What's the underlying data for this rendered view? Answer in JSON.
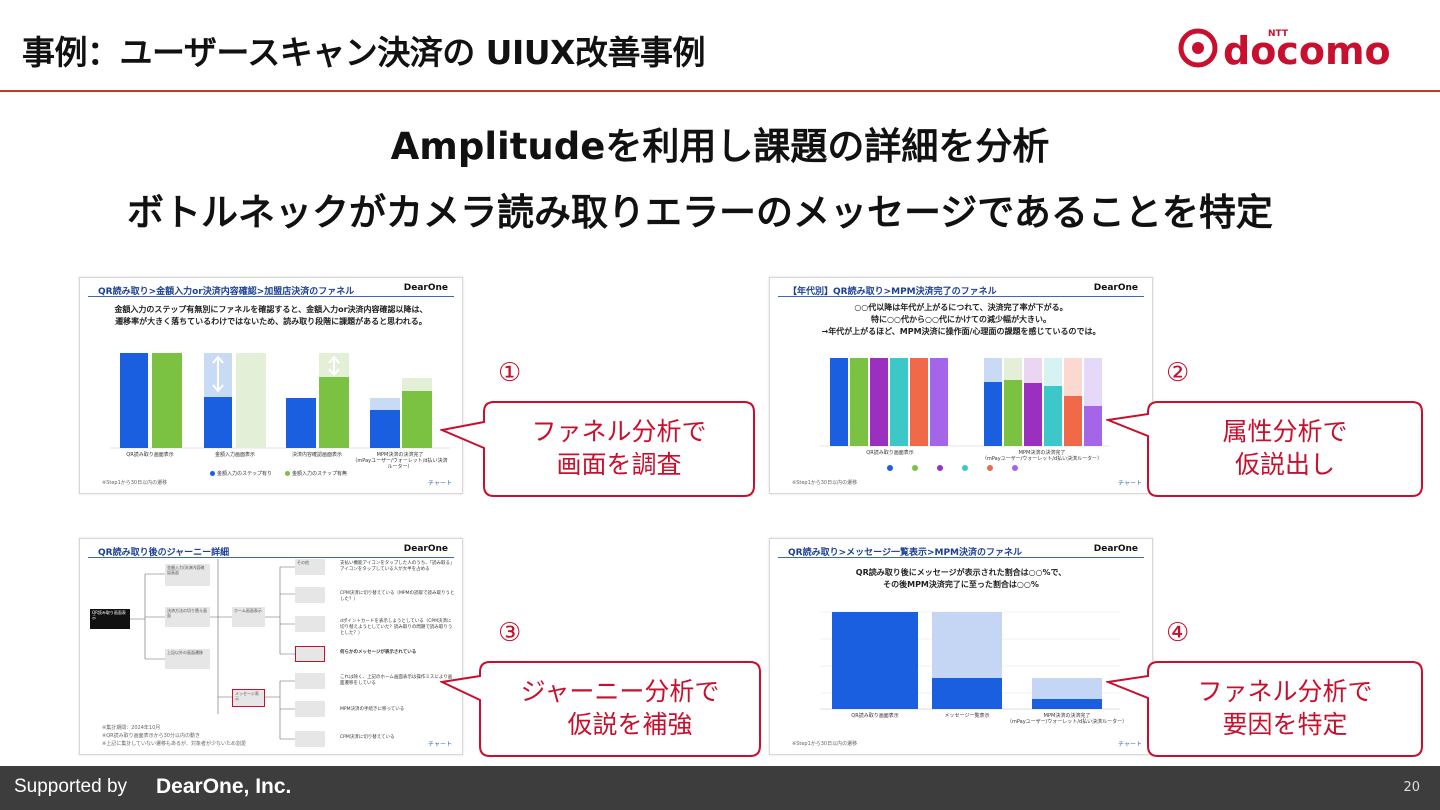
{
  "header": {
    "title": "事例：ユーザースキャン決済の  UIUX改善事例",
    "logo_text": "docomo",
    "logo_sup": "NTT"
  },
  "headline": {
    "line1": "Amplitudeを利用し課題の詳細を分析",
    "line2": "ボトルネックがカメラ読み取りエラーのメッセージであることを特定"
  },
  "colors": {
    "accent": "#c8102e",
    "brand_blue": "#1a5fe0",
    "green": "#7cc242"
  },
  "cards": [
    {
      "title": "QR読み取り>金額入力or決済内容確認>加盟店決済のファネル",
      "brand": "DearOne",
      "desc": [
        "金額入力のステップ有無別にファネルを確認すると、金額入力or決済内容確認以降は、",
        "遷移率が大きく落ちているわけではないため、読み取り段階に課題があると思われる。"
      ],
      "axis": [
        "QR読み取り画面表示",
        "金額入力画面表示",
        "決済内容確認画面表示",
        "MPM決済の決済完了"
      ],
      "axis_sub": "（mPayユーザー/ウォーレット/d払い決済ルーター）",
      "legend": [
        "金額入力のステップ有り",
        "金額入力のステップ有無"
      ],
      "footnote": "※Step1から30日以内の遷移",
      "link": "チャート",
      "number": "①",
      "callout": [
        "ファネル分析で",
        "画面を調査"
      ]
    },
    {
      "title": "【年代別】QR読み取り>MPM決済完了のファネル",
      "brand": "DearOne",
      "desc": [
        "○○代以降は年代が上がるにつれて、決済完了率が下がる。",
        "特に○○代から○○代にかけての減少幅が大きい。",
        "→年代が上がるほど、MPM決済に操作面/心理面の課題を感じているのでは。"
      ],
      "axis": [
        "QR読み取り画面表示",
        "MPM決済の決済完了"
      ],
      "axis_sub": "（mPayユーザー/ウォーレット/d払い決済ルーター）",
      "footnote": "※Step1から30日以内の遷移",
      "link": "チャート",
      "number": "②",
      "callout": [
        "属性分析で",
        "仮説出し"
      ]
    },
    {
      "title": "QR読み取り後のジャーニー詳細",
      "brand": "DearOne",
      "nodes": [
        "QR読み取り画面表示",
        "金額入力/決済内容確認画面",
        "決済方法の切り替え画面",
        "上記以外の画面遷移",
        "ホーム画面表示",
        "メッセージ表示",
        "その他"
      ],
      "notes": [
        "支払い機能アイコンをタップした人のうち、「読み取る」アイコンをタップしている人が大半を占める",
        "CPM決済に切り替えている（MPMの読取で読み取りうとした？）",
        "dポイントカードを表示しようとしている（CPM決済に切り替えようとしていた？読み取りの問題で読み取りうとした？）",
        "何らかのメッセージが表示されている",
        "これは除く、上記のホーム画面表示は操作ミスにより画面遷移をしている",
        "MPM決済の手続きに移っている",
        "CPM決済に切り替えている"
      ],
      "footnote": [
        "※集計期間：2024年10月",
        "※QR読み取り画面表示から30分以内の動き",
        "※上記に集計していない遷移もあるが、対象者が少ないため割愛"
      ],
      "link": "チャート",
      "number": "③",
      "callout": [
        "ジャーニー分析で",
        "仮説を補強"
      ]
    },
    {
      "title": "QR読み取り>メッセージ一覧表示>MPM決済のファネル",
      "brand": "DearOne",
      "desc": [
        "QR読み取り後にメッセージが表示された割合は○○%で、",
        "その後MPM決済完了に至った割合は○○%"
      ],
      "axis": [
        "QR読み取り画面表示",
        "メッセージ一覧表示",
        "MPM決済の決済完了"
      ],
      "axis_sub": "（mPayユーザー/ウォーレット/d払い決済ルーター）",
      "footnote": "※Step1から30日以内の遷移",
      "link": "チャート",
      "number": "④",
      "callout": [
        "ファネル分析で",
        "要因を特定"
      ]
    }
  ],
  "footer": {
    "supported_by": "Supported by",
    "company": "DearOne, Inc.",
    "page": "20"
  }
}
